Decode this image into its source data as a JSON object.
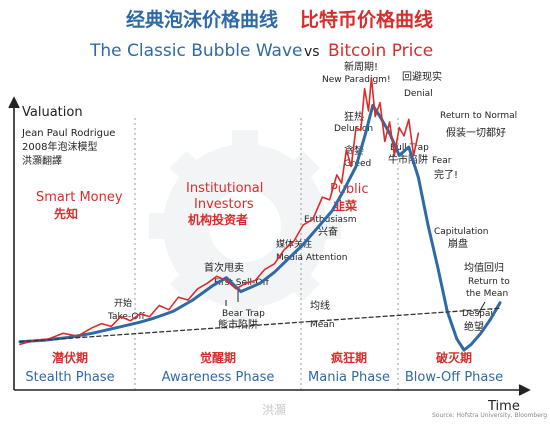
{
  "chart_data": {
    "type": "line",
    "title_cn_left": "经典泡沫价格曲线",
    "title_cn_right": "比特币价格曲线",
    "title_en_left": "The Classic Bubble Wave",
    "title_en_vs": "vs",
    "title_en_right": "Bitcoin Price",
    "ylabel": "Valuation",
    "xlabel": "Time",
    "author": "Jean Paul Rodrigue",
    "model_cn": "2008年泡沫模型",
    "translator_cn": "洪灝翻譯",
    "source": "Source: Hofstra University, Bloomberg",
    "watermark": "洪灝",
    "groups": [
      {
        "en": "Smart Money",
        "cn": "先知"
      },
      {
        "en": "Institutional",
        "en2": "Investors",
        "cn": "机构投资者"
      },
      {
        "en": "Public",
        "cn": "韭菜"
      }
    ],
    "phases": [
      {
        "cn": "潜伏期",
        "en": "Stealth Phase"
      },
      {
        "cn": "觉醒期",
        "en": "Awareness Phase"
      },
      {
        "cn": "疯狂期",
        "en": "Mania Phase"
      },
      {
        "cn": "破灭期",
        "en": "Blow-Off Phase"
      }
    ],
    "annotations": {
      "take_off": {
        "cn": "开始",
        "en": "Take-Off"
      },
      "first_selloff": {
        "cn": "首次甩卖",
        "en": "First Sell-Off"
      },
      "media": {
        "cn": "媒体关注",
        "en": "Media Attention"
      },
      "bear_trap": {
        "en": "Bear Trap",
        "cn": "熊市陷阱"
      },
      "mean": {
        "cn": "均线",
        "en": "Mean"
      },
      "enthusiasm": {
        "en": "Enthusiasm",
        "cn": "兴奋"
      },
      "greed": {
        "cn": "贪婪",
        "en": "Greed"
      },
      "delusion": {
        "cn": "狂热",
        "en": "Delusion"
      },
      "new_paradigm": {
        "cn": "新周期!",
        "en": "New Paradigm!"
      },
      "denial": {
        "cn": "回避现实",
        "en": "Denial"
      },
      "return_normal": {
        "en": "Return to Normal",
        "cn": "假装一切都好"
      },
      "bull_trap": {
        "en": "Bull Trap",
        "cn": "牛市陷阱"
      },
      "fear": {
        "en": "Fear",
        "cn": "完了!"
      },
      "capitulation": {
        "en": "Capitulation",
        "cn": "崩盘"
      },
      "return_mean": {
        "cn": "均值回归",
        "en1": "Return to",
        "en2": "the Mean"
      },
      "despair": {
        "en": "Despair",
        "cn": "绝望"
      }
    },
    "series": [
      {
        "name": "经典泡沫价格曲线",
        "color": "#2f6aa7",
        "x": [
          0,
          5,
          10,
          15,
          20,
          25,
          28,
          32,
          36,
          40,
          43,
          46,
          50,
          53,
          56,
          59,
          62,
          65,
          67,
          70,
          72,
          73.5,
          75,
          77,
          79,
          81,
          83,
          85,
          87,
          89,
          91,
          92.5,
          94,
          96,
          98,
          100
        ],
        "y": [
          3,
          3.5,
          4.5,
          6,
          8,
          10,
          11.5,
          14,
          18,
          23,
          26,
          21,
          24,
          28,
          33,
          38,
          44,
          50,
          56,
          66,
          78,
          88,
          84,
          78,
          70,
          73,
          62,
          45,
          30,
          14,
          4,
          0,
          2,
          6,
          11,
          17
        ]
      },
      {
        "name": "比特币价格曲线",
        "color": "#d92c2c",
        "x": [
          0,
          3,
          6,
          9,
          12,
          15,
          17,
          19,
          21,
          23,
          25,
          27,
          29,
          31,
          33,
          35,
          37,
          39,
          41,
          43,
          45,
          47,
          49,
          51,
          53,
          55,
          57,
          59,
          61,
          63,
          64.5,
          66,
          67,
          68,
          69,
          70,
          71,
          71.8,
          72.6,
          73.2,
          74,
          75,
          76,
          77,
          78,
          79,
          80,
          81,
          82,
          83
        ],
        "y": [
          2,
          3.5,
          4,
          6,
          5,
          8,
          9.5,
          8.5,
          12,
          10.5,
          13,
          12,
          16,
          14.5,
          19,
          18,
          22,
          24,
          26.5,
          25,
          22,
          24,
          25,
          29,
          31,
          36,
          39,
          45,
          47,
          55,
          54,
          63,
          60,
          72,
          66,
          80,
          79,
          94,
          86,
          98,
          84,
          89,
          75,
          82,
          70,
          80,
          77,
          83,
          70,
          78
        ]
      },
      {
        "name": "均线",
        "color": "#333333",
        "x": [
          0,
          100
        ],
        "y": [
          3,
          15
        ]
      }
    ],
    "ylim": [
      0,
      100
    ],
    "xlim": [
      0,
      100
    ],
    "grid": false
  }
}
